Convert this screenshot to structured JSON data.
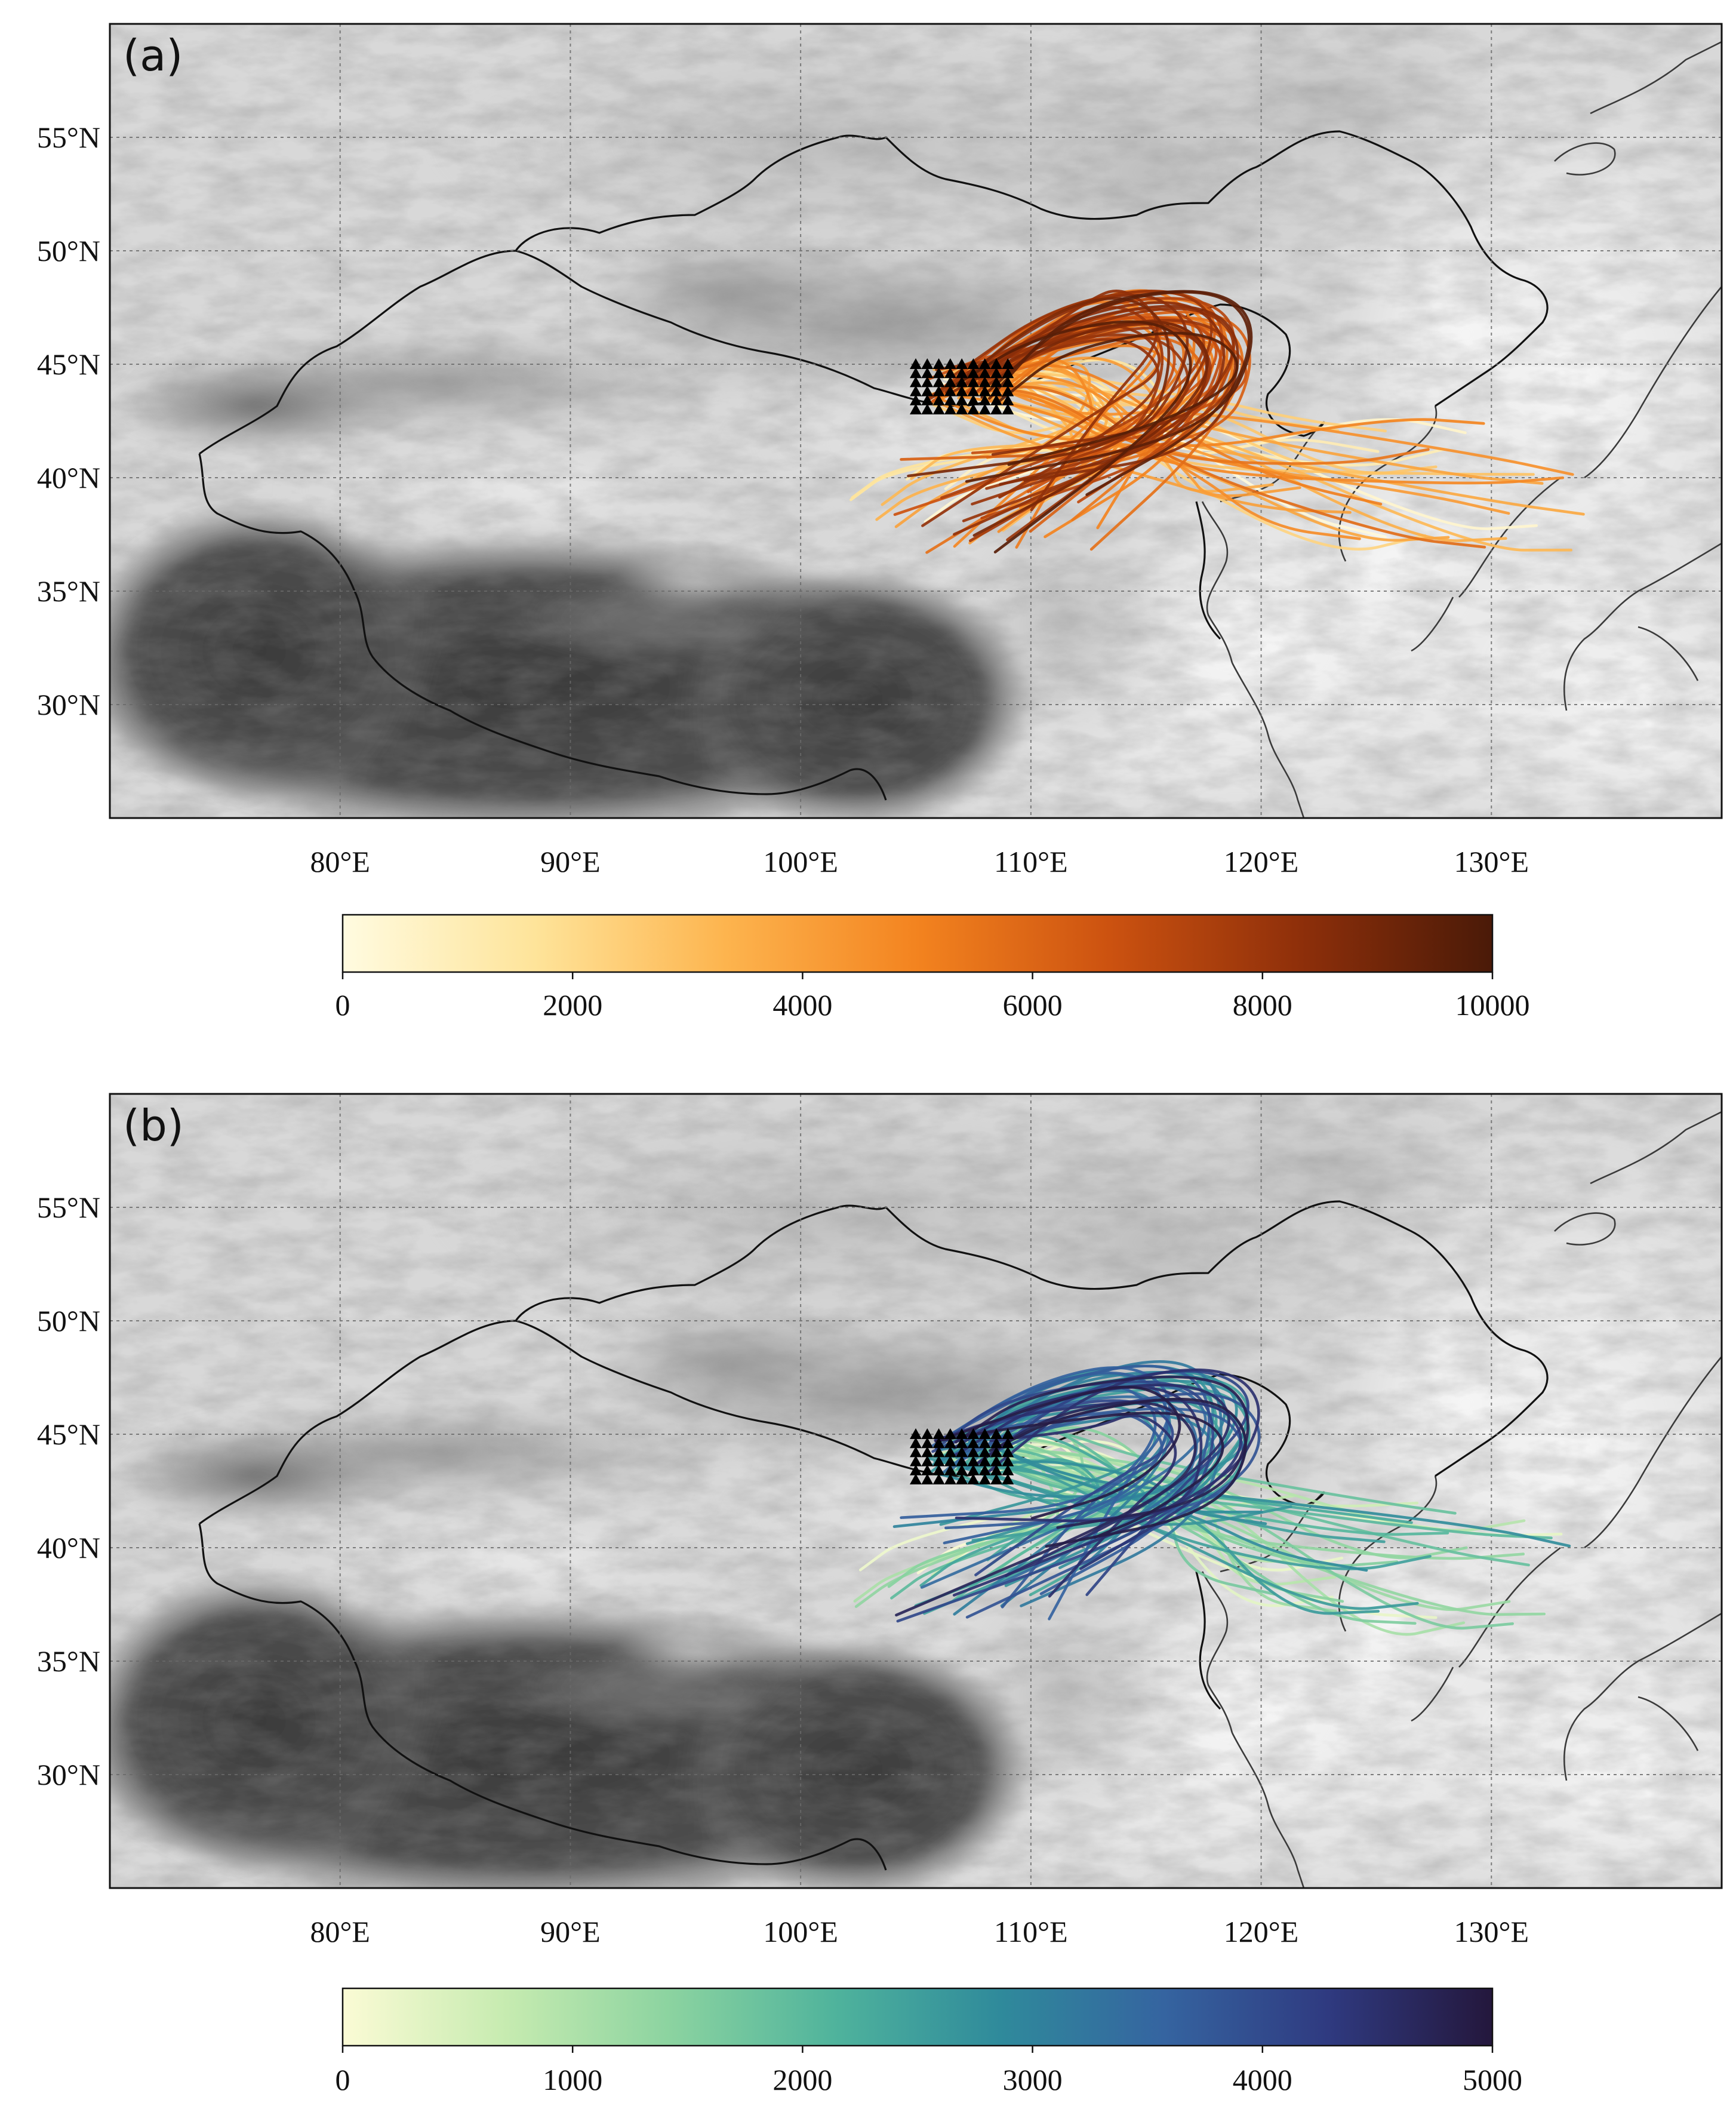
{
  "figure": {
    "panels": [
      {
        "id": "a",
        "label": "(a)",
        "lon_range": [
          70,
          140
        ],
        "lat_range": [
          25,
          60
        ],
        "lon_ticks": [
          80,
          90,
          100,
          110,
          120,
          130
        ],
        "lon_tick_labels": [
          "80°E",
          "90°E",
          "100°E",
          "110°E",
          "120°E",
          "130°E"
        ],
        "lat_ticks": [
          55,
          50,
          45,
          40,
          35,
          30
        ],
        "lat_tick_labels": [
          "55°N",
          "50°N",
          "45°N",
          "40°N",
          "35°N",
          "30°N"
        ],
        "gridlines": true,
        "colormap_name": "YlOrBr",
        "colormap_stops": [
          "#fffbe0",
          "#fee49a",
          "#fdb44e",
          "#f3831f",
          "#cc5210",
          "#8e2f0a",
          "#4a1a08"
        ],
        "colorbar": {
          "range": [
            0,
            10000
          ],
          "ticks": [
            0,
            2000,
            4000,
            6000,
            8000,
            10000
          ],
          "tick_labels": [
            "0",
            "2000",
            "4000",
            "6000",
            "8000",
            "10000"
          ],
          "orientation": "horizontal"
        },
        "source_markers": {
          "shape": "triangle",
          "color": "#000000",
          "lon_range": [
            105,
            109
          ],
          "lat_range": [
            43,
            45
          ],
          "columns": 9,
          "rows": 6
        },
        "trajectories_shown_count_approx": 85
      },
      {
        "id": "b",
        "label": "(b)",
        "lon_range": [
          70,
          140
        ],
        "lat_range": [
          25,
          60
        ],
        "lon_ticks": [
          80,
          90,
          100,
          110,
          120,
          130
        ],
        "lon_tick_labels": [
          "80°E",
          "90°E",
          "100°E",
          "110°E",
          "120°E",
          "130°E"
        ],
        "lat_ticks": [
          55,
          50,
          45,
          40,
          35,
          30
        ],
        "lat_tick_labels": [
          "55°N",
          "50°N",
          "45°N",
          "40°N",
          "35°N",
          "30°N"
        ],
        "gridlines": true,
        "colormap_name": "YlGnBu",
        "colormap_stops": [
          "#fbfbd5",
          "#c6ebb0",
          "#8bd3a0",
          "#4fb39c",
          "#2f8a9b",
          "#3564a0",
          "#2f3a80",
          "#24173c"
        ],
        "colorbar": {
          "range": [
            0,
            5000
          ],
          "ticks": [
            0,
            1000,
            2000,
            3000,
            4000,
            5000
          ],
          "tick_labels": [
            "0",
            "1000",
            "2000",
            "3000",
            "4000",
            "5000"
          ],
          "orientation": "horizontal"
        },
        "source_markers": {
          "shape": "triangle",
          "color": "#000000",
          "lon_range": [
            105,
            109
          ],
          "lat_range": [
            43,
            45
          ],
          "columns": 9,
          "rows": 6
        },
        "trajectories_shown_count_approx": 85
      }
    ]
  }
}
